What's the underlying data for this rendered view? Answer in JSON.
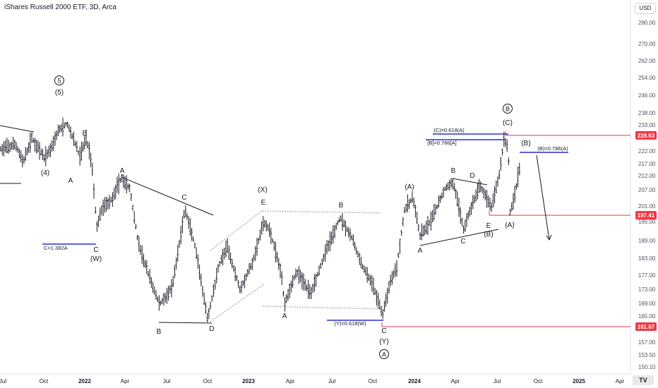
{
  "title": "iShares Russell 2000 ETF, 3D, Arca",
  "currency_button": "USD",
  "logo_text": "TV",
  "colors": {
    "bar": "#131722",
    "level_red": "#f23645",
    "fib_blue": "#2a2ed8",
    "axis_text": "#50535e"
  },
  "chart_data": {
    "type": "ohlc",
    "title": "iShares Russell 2000 ETF, 3D, Arca",
    "price_scale": {
      "ticks": [
        150.1,
        153.5,
        157.0,
        161.0,
        165.0,
        169.0,
        173.0,
        177.0,
        183.0,
        189.0,
        195.0,
        201.0,
        207.0,
        212.0,
        217.0,
        222.0,
        228.0,
        233.0,
        238.0,
        246.0,
        254.0,
        262.0,
        270.0,
        280.0
      ],
      "ylim": [
        148.0,
        292.0
      ]
    },
    "time_axis": {
      "ticks": [
        "Jul",
        "Oct",
        "2022",
        "Apr",
        "Jul",
        "Oct",
        "2023",
        "Apr",
        "Jul",
        "Oct",
        "2024",
        "Apr",
        "Jul",
        "Oct",
        "2025",
        "Apr"
      ],
      "bold": [
        "2022",
        "2023",
        "2024",
        "2025"
      ]
    },
    "price_labels": [
      {
        "text": "228.63",
        "value": 228.63
      },
      {
        "text": "197.41",
        "value": 197.41
      },
      {
        "text": "161.67",
        "value": 161.67
      }
    ],
    "wave_labels": [
      "5",
      "(5)",
      "(4)",
      "A",
      "B",
      "C",
      "(W)",
      "A",
      "B",
      "C",
      "D",
      "E",
      "(X)",
      "A",
      "B",
      "C",
      "(Y)",
      "A",
      "(A)",
      "A",
      "B",
      "C",
      "D",
      "E",
      "(B)",
      "B",
      "(C)",
      "(A)",
      "(B)"
    ],
    "circled_labels": [
      "5",
      "A",
      "B"
    ],
    "annotations": [
      "C=1.382A",
      "(Y)=0.618(W)",
      "(C)=0.618(A)",
      "[B]=0.786[A]",
      "(B)=0.786(A)"
    ]
  }
}
